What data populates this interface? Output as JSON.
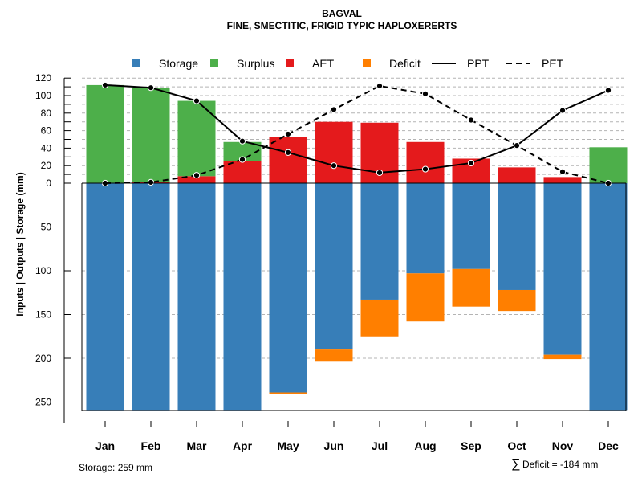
{
  "chart_data": {
    "type": "bar",
    "title": "BAGVAL",
    "subtitle": "FINE, SMECTITIC, FRIGID TYPIC HAPLOXERERTS",
    "ylabel": "Inputs | Outputs | Storage     (mm)",
    "categories": [
      "Jan",
      "Feb",
      "Mar",
      "Apr",
      "May",
      "Jun",
      "Jul",
      "Aug",
      "Sep",
      "Oct",
      "Nov",
      "Dec"
    ],
    "upper_axis": {
      "range": [
        0,
        120
      ],
      "ticks": [
        0,
        10,
        20,
        30,
        40,
        50,
        60,
        70,
        80,
        90,
        100,
        110,
        120
      ],
      "tick_labels": [
        "0",
        "",
        "20",
        "",
        "40",
        "",
        "60",
        "",
        "80",
        "",
        "100",
        "",
        "120"
      ]
    },
    "lower_axis": {
      "range": [
        0,
        259
      ],
      "ticks": [
        50,
        100,
        150,
        200,
        250
      ],
      "tick_labels": [
        "50",
        "100",
        "150",
        "200",
        "250"
      ]
    },
    "legend": [
      {
        "label": "Storage",
        "kind": "box",
        "color": "#377EB8"
      },
      {
        "label": "Surplus",
        "kind": "box",
        "color": "#4DAF4A"
      },
      {
        "label": "AET",
        "kind": "box",
        "color": "#E41A1C"
      },
      {
        "label": "Deficit",
        "kind": "box",
        "color": "#FF7F00"
      },
      {
        "label": "PPT",
        "kind": "line",
        "dash": "solid"
      },
      {
        "label": "PET",
        "kind": "line",
        "dash": "dashed"
      }
    ],
    "series": [
      {
        "name": "AET",
        "color": "#E41A1C",
        "values": [
          0,
          1,
          8,
          25,
          53,
          70,
          69,
          47,
          28,
          18,
          7,
          0
        ]
      },
      {
        "name": "Surplus",
        "color": "#4DAF4A",
        "values": [
          112,
          108,
          86,
          22,
          0,
          0,
          0,
          0,
          0,
          0,
          0,
          41
        ]
      },
      {
        "name": "Storage",
        "color": "#377EB8",
        "values": [
          259,
          259,
          259,
          259,
          239,
          190,
          133,
          103,
          98,
          122,
          196,
          259
        ]
      },
      {
        "name": "Deficit",
        "color": "#FF7F00",
        "values": [
          0,
          0,
          0,
          0,
          2,
          13,
          42,
          55,
          43,
          24,
          5,
          0
        ]
      },
      {
        "name": "PPT",
        "values": [
          112,
          109,
          94,
          48,
          35,
          20,
          12,
          16,
          23,
          43,
          83,
          106
        ]
      },
      {
        "name": "PET",
        "values": [
          0,
          1,
          9,
          27,
          56,
          84,
          111,
          102,
          72,
          43,
          13,
          0
        ]
      }
    ],
    "footnote_left": "Storage: 259 mm",
    "footnote_right_symbol": "∑",
    "footnote_right": "Deficit = -184 mm"
  }
}
